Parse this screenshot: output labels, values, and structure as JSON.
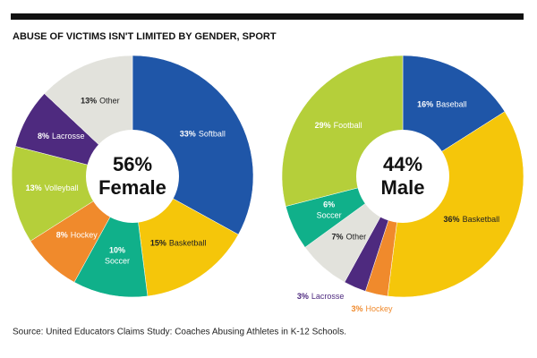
{
  "title": "ABUSE OF VICTIMS ISN'T LIMITED BY GENDER, SPORT",
  "source": "Source: United Educators Claims Study: Coaches Abusing Athletes in K-12 Schools.",
  "chart_data": [
    {
      "type": "donut",
      "center_title": "56%",
      "center_subtitle": "Female",
      "categories": [
        "Softball",
        "Basketball",
        "Soccer",
        "Hockey",
        "Volleyball",
        "Lacrosse",
        "Other"
      ],
      "values": [
        33,
        15,
        10,
        8,
        13,
        8,
        13
      ],
      "value_labels": [
        "33%",
        "15%",
        "10%",
        "8%",
        "13%",
        "8%",
        "13%"
      ],
      "colors": [
        "#1f56a8",
        "#f5c60a",
        "#10b08a",
        "#f08a2c",
        "#b5cf3a",
        "#4e2a7f",
        "#e2e2dc"
      ]
    },
    {
      "type": "donut",
      "center_title": "44%",
      "center_subtitle": "Male",
      "categories": [
        "Baseball",
        "Basketball",
        "Hockey",
        "Lacrosse",
        "Other",
        "Soccer",
        "Football"
      ],
      "values": [
        16,
        36,
        3,
        3,
        7,
        6,
        29
      ],
      "value_labels": [
        "16%",
        "36%",
        "3%",
        "3%",
        "7%",
        "6%",
        "29%"
      ],
      "colors": [
        "#1f56a8",
        "#f5c60a",
        "#f08a2c",
        "#4e2a7f",
        "#e2e2dc",
        "#10b08a",
        "#b5cf3a"
      ]
    }
  ]
}
